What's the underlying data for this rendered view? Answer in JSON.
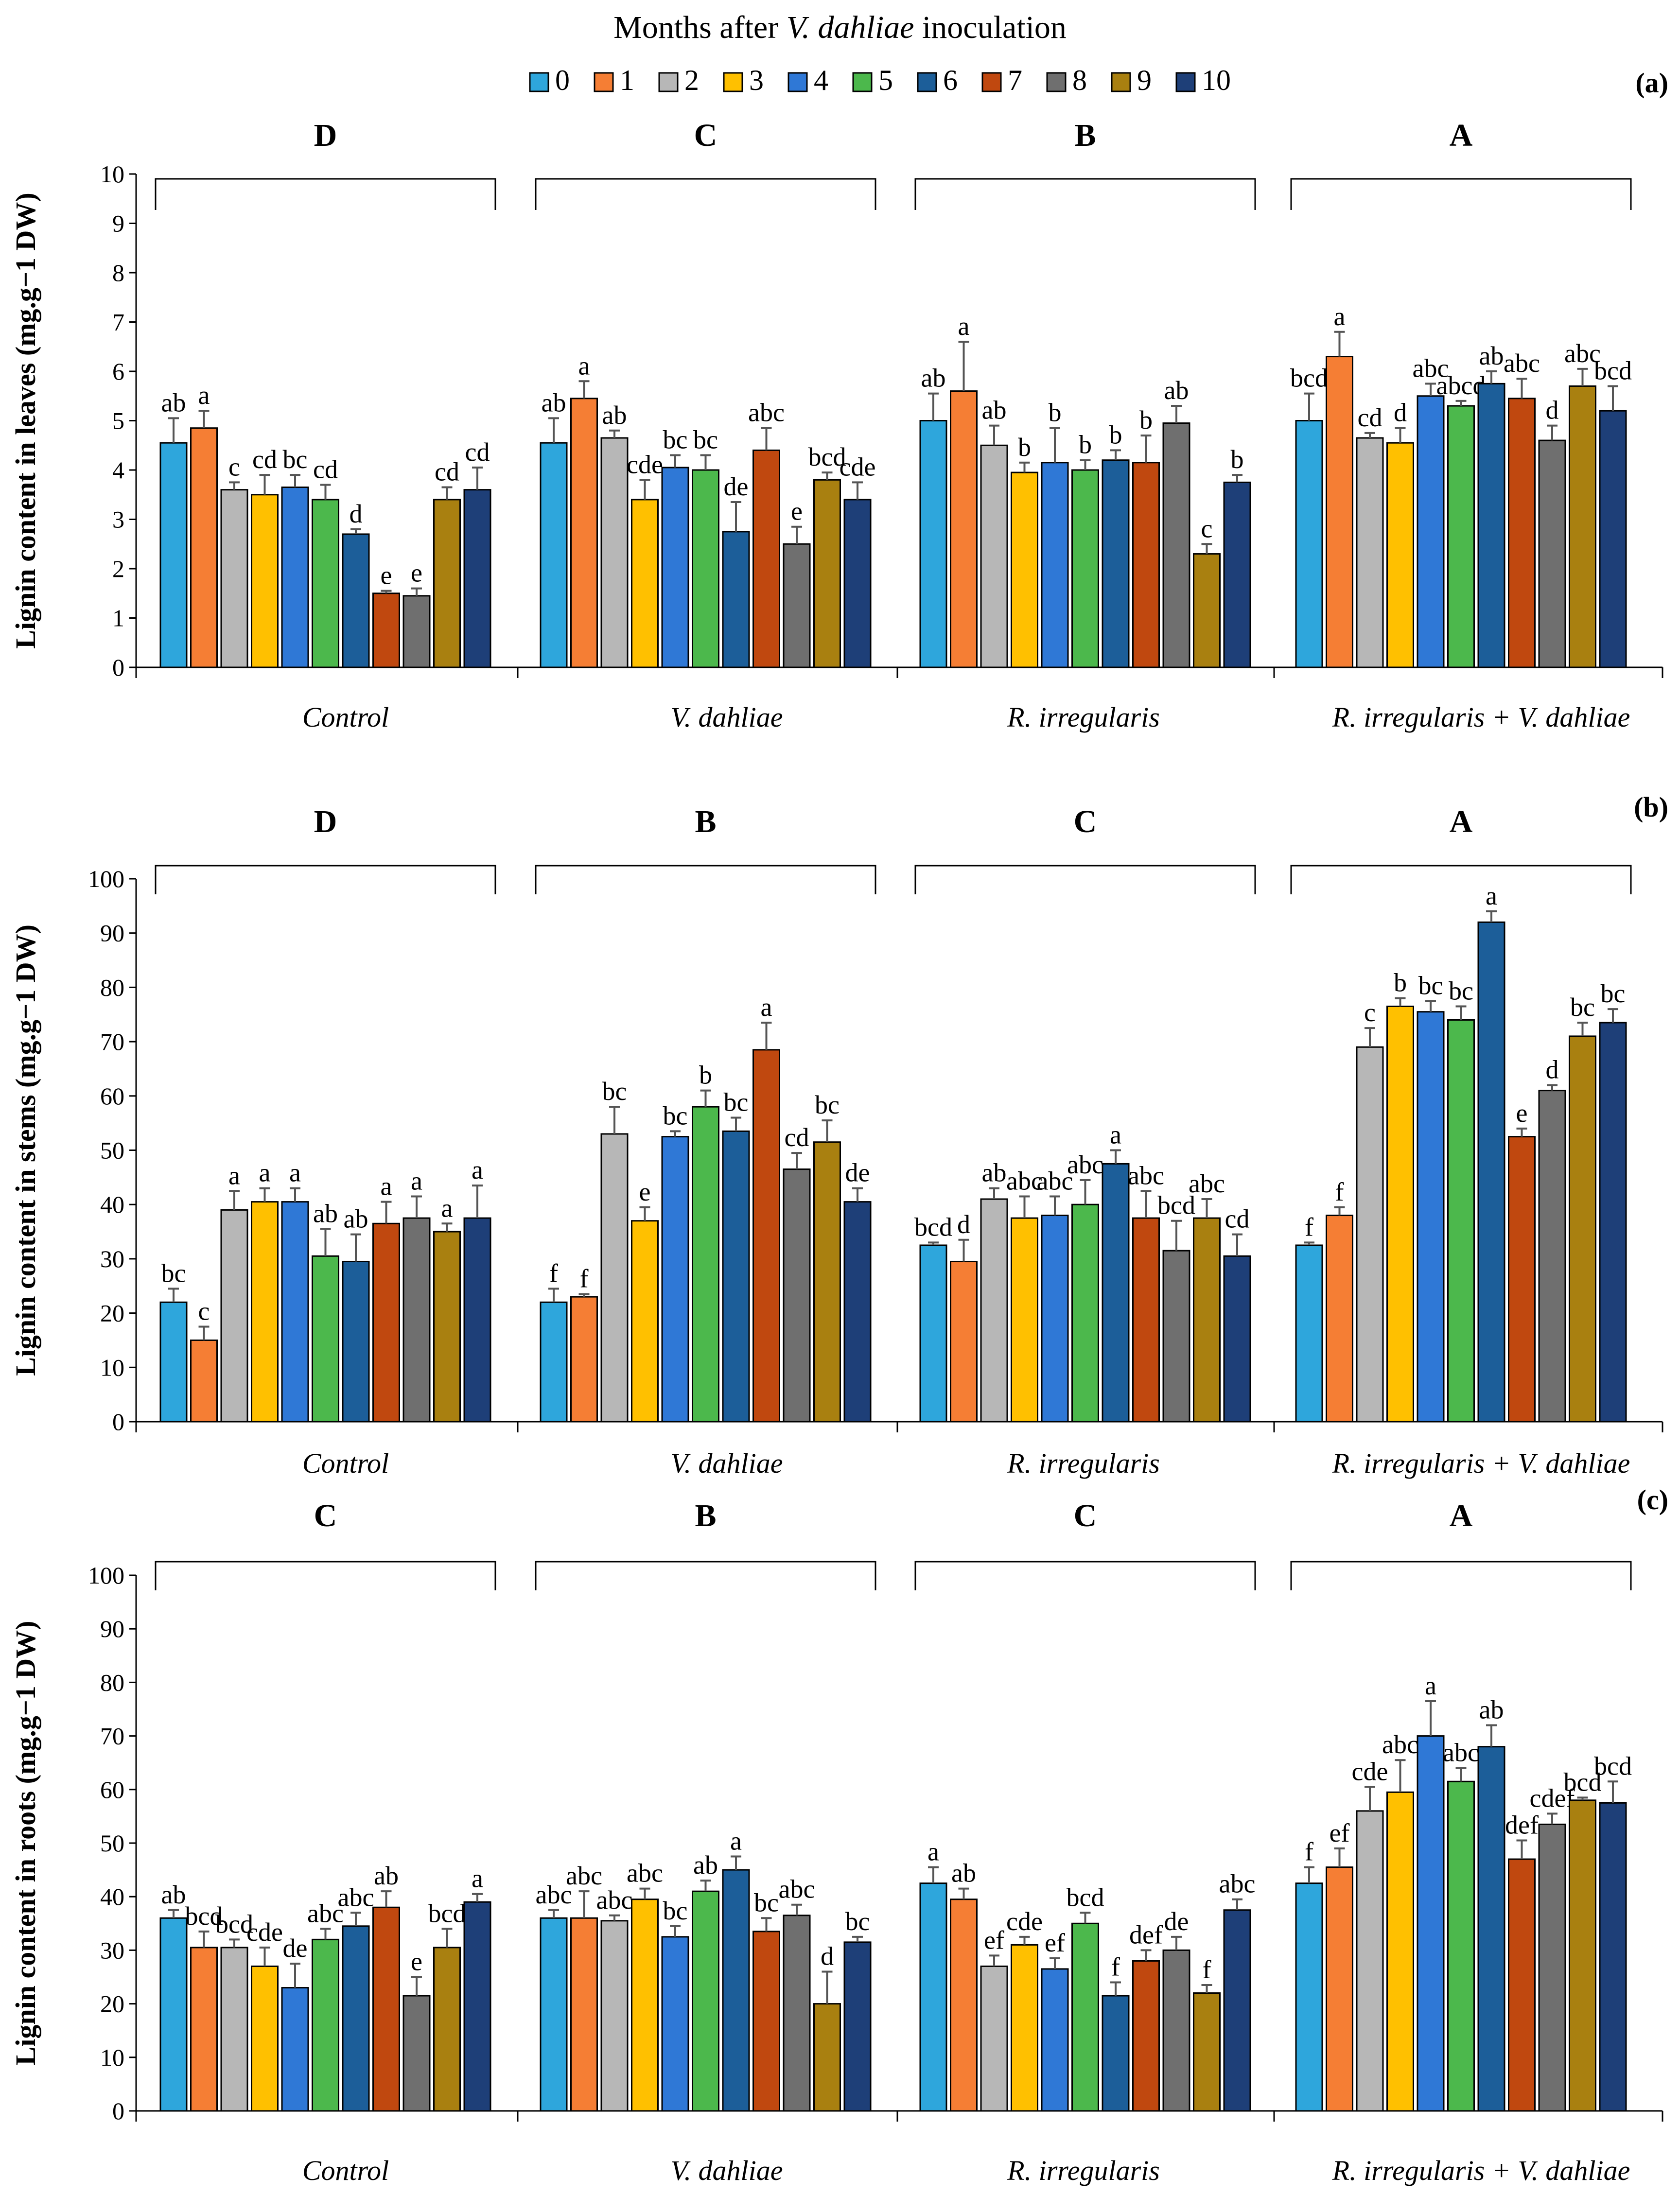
{
  "legend": {
    "title_prefix": "Months after ",
    "title_italic": "V. dahliae",
    "title_suffix": " inoculation",
    "months": [
      "0",
      "1",
      "2",
      "3",
      "4",
      "5",
      "6",
      "7",
      "8",
      "9",
      "10"
    ],
    "colors": [
      "#2ea6dc",
      "#f57e34",
      "#b7b7b7",
      "#ffc000",
      "#2f78d6",
      "#4cb84c",
      "#1c5e99",
      "#c0480f",
      "#6f6f6f",
      "#a98010",
      "#1e3f78"
    ]
  },
  "chart_data": [
    {
      "type": "bar",
      "panel_label": "(a)",
      "ylabel": "Lignin content in leaves (mg.g−1 DW)",
      "ylim": [
        0,
        10
      ],
      "yticks": [
        "0",
        "1",
        "2",
        "3",
        "4",
        "5",
        "6",
        "7",
        "8",
        "9",
        "10"
      ],
      "categories": [
        "Control",
        "V. dahliae",
        "R. irregularis",
        "R. irregularis + V. dahliae"
      ],
      "group_letters": [
        "D",
        "C",
        "B",
        "A"
      ],
      "values": [
        [
          4.55,
          4.85,
          3.6,
          3.5,
          3.65,
          3.4,
          2.7,
          1.5,
          1.45,
          3.4,
          3.6
        ],
        [
          4.55,
          5.45,
          4.65,
          3.4,
          4.05,
          4.0,
          2.75,
          4.4,
          2.5,
          3.8,
          3.4
        ],
        [
          5.0,
          5.6,
          4.5,
          3.95,
          4.15,
          4.0,
          4.2,
          4.15,
          4.95,
          2.3,
          3.75
        ],
        [
          5.0,
          6.3,
          4.65,
          4.55,
          5.5,
          5.3,
          5.75,
          5.45,
          4.6,
          5.7,
          5.2
        ]
      ],
      "errors": [
        [
          0.5,
          0.35,
          0.15,
          0.4,
          0.25,
          0.3,
          0.1,
          0.05,
          0.15,
          0.25,
          0.45
        ],
        [
          0.5,
          0.35,
          0.15,
          0.4,
          0.25,
          0.3,
          0.6,
          0.45,
          0.35,
          0.15,
          0.35
        ],
        [
          0.55,
          1.0,
          0.4,
          0.2,
          0.7,
          0.2,
          0.2,
          0.55,
          0.35,
          0.2,
          0.15
        ],
        [
          0.55,
          0.5,
          0.1,
          0.3,
          0.25,
          0.1,
          0.25,
          0.4,
          0.3,
          0.35,
          0.5
        ]
      ],
      "letters": [
        [
          "ab",
          "a",
          "c",
          "cd",
          "bc",
          "cd",
          "d",
          "e",
          "e",
          "cd",
          "cd"
        ],
        [
          "ab",
          "a",
          "ab",
          "cde",
          "bc",
          "bc",
          "de",
          "abc",
          "e",
          "bcd",
          "cde"
        ],
        [
          "ab",
          "a",
          "ab",
          "b",
          "b",
          "b",
          "b",
          "b",
          "ab",
          "c",
          "b"
        ],
        [
          "bcd",
          "a",
          "cd",
          "d",
          "abc",
          "abcd",
          "ab",
          "abc",
          "d",
          "abc",
          "bcd"
        ]
      ]
    },
    {
      "type": "bar",
      "panel_label": "(b)",
      "ylabel": "Lignin content in stems (mg.g−1 DW)",
      "ylim": [
        0,
        100
      ],
      "yticks": [
        "0",
        "10",
        "20",
        "30",
        "40",
        "50",
        "60",
        "70",
        "80",
        "90",
        "100"
      ],
      "categories": [
        "Control",
        "V. dahliae",
        "R. irregularis",
        "R. irregularis + V. dahliae"
      ],
      "group_letters": [
        "D",
        "B",
        "C",
        "A"
      ],
      "values": [
        [
          22,
          15,
          39,
          40.5,
          40.5,
          30.5,
          29.5,
          36.5,
          37.5,
          35,
          37.5
        ],
        [
          22,
          23,
          53,
          37,
          52.5,
          58,
          53.5,
          68.5,
          46.5,
          51.5,
          40.5
        ],
        [
          32.5,
          29.5,
          41,
          37.5,
          38,
          40,
          47.5,
          37.5,
          31.5,
          37.5,
          30.5
        ],
        [
          32.5,
          38,
          69,
          76.5,
          75.5,
          74,
          92,
          52.5,
          61,
          71,
          73.5
        ]
      ],
      "errors": [
        [
          2.5,
          2.5,
          3.5,
          2.5,
          2.5,
          5.0,
          5.0,
          4.0,
          4.0,
          1.5,
          6.0
        ],
        [
          2.5,
          0.5,
          5.0,
          2.5,
          1.0,
          3.0,
          2.5,
          5.0,
          3.0,
          4.0,
          2.5
        ],
        [
          0.5,
          4.0,
          2.0,
          4.0,
          3.5,
          4.5,
          2.5,
          5.0,
          5.5,
          3.5,
          4.0
        ],
        [
          0.5,
          1.5,
          3.5,
          1.5,
          2.0,
          2.5,
          2.0,
          1.5,
          1.0,
          2.5,
          2.5
        ]
      ],
      "letters": [
        [
          "bc",
          "c",
          "a",
          "a",
          "a",
          "ab",
          "ab",
          "a",
          "a",
          "a",
          "a"
        ],
        [
          "f",
          "f",
          "bc",
          "e",
          "bc",
          "b",
          "bc",
          "a",
          "cd",
          "bc",
          "de"
        ],
        [
          "bcd",
          "d",
          "ab",
          "abc",
          "abc",
          "abc",
          "a",
          "abc",
          "bcd",
          "abc",
          "cd"
        ],
        [
          "f",
          "f",
          "c",
          "b",
          "bc",
          "bc",
          "a",
          "e",
          "d",
          "bc",
          "bc"
        ]
      ]
    },
    {
      "type": "bar",
      "panel_label": "(c)",
      "ylabel": "Lignin content in roots (mg.g−1 DW)",
      "ylim": [
        0,
        100
      ],
      "yticks": [
        "0",
        "10",
        "20",
        "30",
        "40",
        "50",
        "60",
        "70",
        "80",
        "90",
        "100"
      ],
      "categories": [
        "Control",
        "V. dahliae",
        "R. irregularis",
        "R. irregularis + V. dahliae"
      ],
      "group_letters": [
        "C",
        "B",
        "C",
        "A"
      ],
      "values": [
        [
          36,
          30.5,
          30.5,
          27,
          23,
          32,
          34.5,
          38,
          21.5,
          30.5,
          39
        ],
        [
          36,
          36,
          35.5,
          39.5,
          32.5,
          41,
          45,
          33.5,
          36.5,
          20,
          31.5
        ],
        [
          42.5,
          39.5,
          27,
          31,
          26.5,
          35,
          21.5,
          28,
          30,
          22,
          37.5
        ],
        [
          42.5,
          45.5,
          56,
          59.5,
          70,
          61.5,
          68,
          47,
          53.5,
          58,
          57.5
        ]
      ],
      "errors": [
        [
          1.5,
          3.0,
          1.5,
          3.5,
          4.5,
          2.0,
          2.5,
          3.0,
          3.5,
          3.5,
          1.5
        ],
        [
          1.5,
          5.0,
          1.0,
          2.0,
          2.0,
          2.0,
          2.5,
          2.5,
          2.0,
          6.0,
          1.0
        ],
        [
          3.0,
          2.0,
          2.0,
          1.5,
          2.0,
          2.0,
          2.5,
          2.0,
          2.5,
          1.5,
          2.0
        ],
        [
          3.0,
          3.5,
          4.5,
          6.0,
          6.5,
          2.5,
          4.0,
          3.5,
          2.0,
          0.5,
          4.0
        ]
      ],
      "letters": [
        [
          "ab",
          "bcd",
          "bcd",
          "cde",
          "de",
          "abc",
          "abc",
          "ab",
          "e",
          "bcd",
          "a"
        ],
        [
          "abc",
          "abc",
          "abc",
          "abc",
          "bc",
          "ab",
          "a",
          "bc",
          "abc",
          "d",
          "bc"
        ],
        [
          "a",
          "ab",
          "ef",
          "cde",
          "ef",
          "bcd",
          "f",
          "def",
          "de",
          "f",
          "abc"
        ],
        [
          "f",
          "ef",
          "cde",
          "abc",
          "a",
          "abc",
          "ab",
          "def",
          "cdef",
          "bcd",
          "bcd"
        ]
      ]
    }
  ]
}
